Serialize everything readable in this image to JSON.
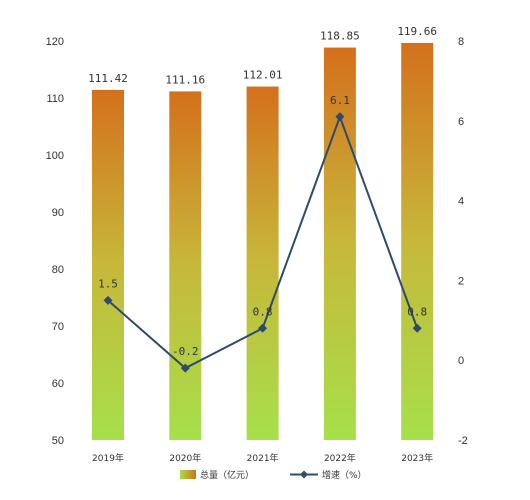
{
  "chart_data": {
    "type": "bar",
    "categories": [
      "2019年",
      "2020年",
      "2021年",
      "2022年",
      "2023年"
    ],
    "series": [
      {
        "name": "总量（亿元）",
        "type": "bar",
        "axis": "left",
        "values": [
          111.42,
          111.16,
          112.01,
          118.85,
          119.66
        ],
        "labels": [
          "111.42",
          "111.16",
          "112.01",
          "118.85",
          "119.66"
        ],
        "color_top": "#d4701c",
        "color_bottom": "#a6e04a"
      },
      {
        "name": "增速（%）",
        "type": "line",
        "axis": "right",
        "values": [
          1.5,
          -0.2,
          0.8,
          6.1,
          0.8
        ],
        "labels": [
          "1.5",
          "-0.2",
          "0.8",
          "6.1",
          "0.8"
        ],
        "color": "#2e4a6e"
      }
    ],
    "left_axis": {
      "min": 50,
      "max": 120,
      "ticks": [
        "50",
        "60",
        "70",
        "80",
        "90",
        "100",
        "110",
        "120"
      ]
    },
    "right_axis": {
      "min": -2,
      "max": 8,
      "ticks": [
        "-2",
        "0",
        "2",
        "4",
        "6",
        "8"
      ]
    },
    "grid": false,
    "legend_placement": "bottom"
  }
}
